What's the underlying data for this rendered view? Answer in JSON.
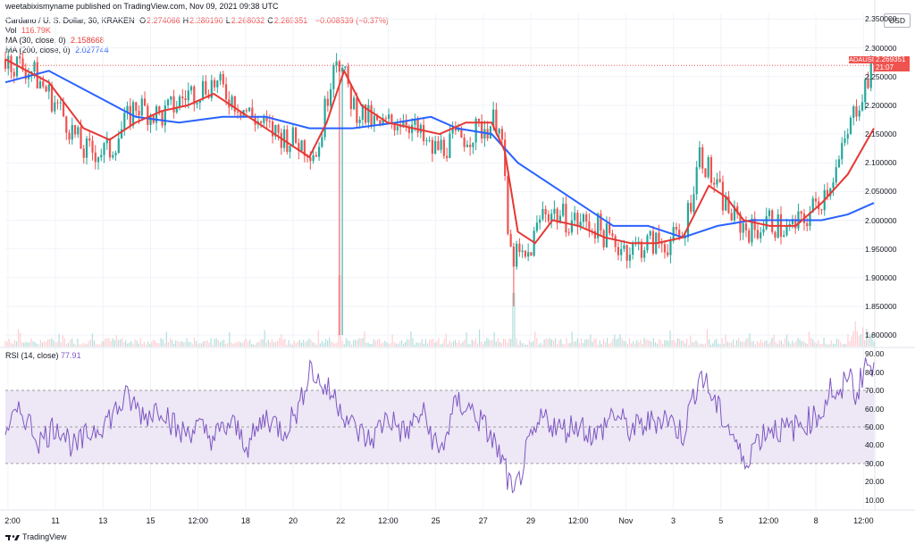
{
  "header": {
    "text": "weetabixismyname published on TradingView.com, Nov 09, 2021 09:38 UTC"
  },
  "legend": {
    "symbol": "Cardano / U. S. Dollar, 30, KRAKEN",
    "ohlc": [
      {
        "k": "O",
        "v": "2.274066"
      },
      {
        "k": "H",
        "v": "2.280190"
      },
      {
        "k": "L",
        "v": "2.268032"
      },
      {
        "k": "C",
        "v": "2.269351"
      }
    ],
    "change": "−0.008539 (−0.37%)",
    "vol_label": "Vol",
    "vol_value": "116.79K",
    "ma30_label": "MA (30, close, 0)",
    "ma30_value": "2.158668",
    "ma200_label": "MA (200, close, 0)",
    "ma200_value": "2.027744",
    "rsi_label": "RSI (14, close)",
    "rsi_value": "77.91"
  },
  "price_tag": {
    "symbol": "ADAUSD",
    "price": "2.269351",
    "countdown": "21:07"
  },
  "currency": "USD",
  "logo_text": "TradingView",
  "colors": {
    "up": "#26a69a",
    "down": "#ef5350",
    "ma30": "#e53935",
    "ma200": "#2962ff",
    "rsi": "#7e57c2",
    "rsi_band": "#ede7f6",
    "grid": "#f0f3fa"
  },
  "chart_data": [
    {
      "type": "candlestick",
      "title": "Cardano / U. S. Dollar, 30, KRAKEN",
      "x_tick_labels": [
        "2:00",
        "11",
        "13",
        "15",
        "12:00",
        "18",
        "20",
        "22",
        "12:00",
        "25",
        "27",
        "29",
        "12:00",
        "Nov",
        "3",
        "5",
        "12:00",
        "8",
        "12:00"
      ],
      "y_tick_labels": [
        "1.800000",
        "1.850000",
        "1.900000",
        "1.950000",
        "2.000000",
        "2.050000",
        "2.100000",
        "2.150000",
        "2.200000",
        "2.250000",
        "2.300000",
        "2.350000"
      ],
      "ylim": [
        1.78,
        2.36
      ],
      "close_path": [
        [
          0,
          2.28
        ],
        [
          0.03,
          2.26
        ],
        [
          0.06,
          2.2
        ],
        [
          0.09,
          2.12
        ],
        [
          0.12,
          2.12
        ],
        [
          0.15,
          2.2
        ],
        [
          0.18,
          2.18
        ],
        [
          0.21,
          2.22
        ],
        [
          0.24,
          2.24
        ],
        [
          0.27,
          2.2
        ],
        [
          0.3,
          2.16
        ],
        [
          0.33,
          2.14
        ],
        [
          0.36,
          2.12
        ],
        [
          0.38,
          2.3
        ],
        [
          0.4,
          2.2
        ],
        [
          0.43,
          2.16
        ],
        [
          0.46,
          2.18
        ],
        [
          0.49,
          2.12
        ],
        [
          0.52,
          2.14
        ],
        [
          0.55,
          2.16
        ],
        [
          0.57,
          2.18
        ],
        [
          0.58,
          1.94
        ],
        [
          0.6,
          1.93
        ],
        [
          0.62,
          2.02
        ],
        [
          0.65,
          2.0
        ],
        [
          0.68,
          1.99
        ],
        [
          0.7,
          1.96
        ],
        [
          0.72,
          1.95
        ],
        [
          0.74,
          1.96
        ],
        [
          0.76,
          1.96
        ],
        [
          0.78,
          1.97
        ],
        [
          0.8,
          2.12
        ],
        [
          0.82,
          2.05
        ],
        [
          0.84,
          2.0
        ],
        [
          0.86,
          1.98
        ],
        [
          0.88,
          2.0
        ],
        [
          0.9,
          1.98
        ],
        [
          0.92,
          2.0
        ],
        [
          0.94,
          2.04
        ],
        [
          0.96,
          2.1
        ],
        [
          0.98,
          2.2
        ],
        [
          1.0,
          2.27
        ]
      ],
      "ma30_path": [
        [
          0,
          2.28
        ],
        [
          0.05,
          2.24
        ],
        [
          0.09,
          2.16
        ],
        [
          0.12,
          2.14
        ],
        [
          0.15,
          2.17
        ],
        [
          0.18,
          2.19
        ],
        [
          0.21,
          2.2
        ],
        [
          0.24,
          2.22
        ],
        [
          0.27,
          2.19
        ],
        [
          0.31,
          2.15
        ],
        [
          0.35,
          2.11
        ],
        [
          0.37,
          2.17
        ],
        [
          0.39,
          2.26
        ],
        [
          0.41,
          2.2
        ],
        [
          0.44,
          2.17
        ],
        [
          0.47,
          2.16
        ],
        [
          0.5,
          2.15
        ],
        [
          0.53,
          2.17
        ],
        [
          0.56,
          2.17
        ],
        [
          0.575,
          2.12
        ],
        [
          0.59,
          1.98
        ],
        [
          0.61,
          1.96
        ],
        [
          0.63,
          2.0
        ],
        [
          0.66,
          1.99
        ],
        [
          0.69,
          1.97
        ],
        [
          0.72,
          1.96
        ],
        [
          0.75,
          1.96
        ],
        [
          0.78,
          1.97
        ],
        [
          0.81,
          2.06
        ],
        [
          0.83,
          2.04
        ],
        [
          0.85,
          2.0
        ],
        [
          0.88,
          1.99
        ],
        [
          0.91,
          1.99
        ],
        [
          0.94,
          2.03
        ],
        [
          0.97,
          2.08
        ],
        [
          1.0,
          2.16
        ]
      ],
      "ma200_path": [
        [
          0,
          2.24
        ],
        [
          0.05,
          2.26
        ],
        [
          0.1,
          2.22
        ],
        [
          0.15,
          2.18
        ],
        [
          0.2,
          2.17
        ],
        [
          0.25,
          2.18
        ],
        [
          0.3,
          2.18
        ],
        [
          0.35,
          2.16
        ],
        [
          0.4,
          2.16
        ],
        [
          0.45,
          2.17
        ],
        [
          0.49,
          2.18
        ],
        [
          0.52,
          2.16
        ],
        [
          0.56,
          2.15
        ],
        [
          0.59,
          2.1
        ],
        [
          0.63,
          2.06
        ],
        [
          0.67,
          2.02
        ],
        [
          0.7,
          1.99
        ],
        [
          0.74,
          1.99
        ],
        [
          0.78,
          1.97
        ],
        [
          0.82,
          1.99
        ],
        [
          0.86,
          2.0
        ],
        [
          0.9,
          2.0
        ],
        [
          0.94,
          2.0
        ],
        [
          0.97,
          2.01
        ],
        [
          1.0,
          2.03
        ]
      ],
      "last_price": 2.269351
    },
    {
      "type": "line",
      "title": "RSI (14, close)",
      "y_tick_labels": [
        "10.00",
        "20.00",
        "30.00",
        "40.00",
        "50.00",
        "60.00",
        "70.00",
        "80.00",
        "90.00"
      ],
      "ylim": [
        5,
        93
      ],
      "band": [
        30,
        70
      ],
      "midline": 50,
      "path": [
        [
          0,
          50
        ],
        [
          0.02,
          58
        ],
        [
          0.04,
          42
        ],
        [
          0.06,
          52
        ],
        [
          0.08,
          38
        ],
        [
          0.1,
          48
        ],
        [
          0.12,
          55
        ],
        [
          0.14,
          66
        ],
        [
          0.16,
          56
        ],
        [
          0.18,
          62
        ],
        [
          0.2,
          46
        ],
        [
          0.22,
          50
        ],
        [
          0.24,
          44
        ],
        [
          0.26,
          52
        ],
        [
          0.28,
          40
        ],
        [
          0.3,
          56
        ],
        [
          0.32,
          48
        ],
        [
          0.34,
          62
        ],
        [
          0.35,
          84
        ],
        [
          0.36,
          75
        ],
        [
          0.38,
          66
        ],
        [
          0.4,
          50
        ],
        [
          0.42,
          42
        ],
        [
          0.44,
          56
        ],
        [
          0.46,
          46
        ],
        [
          0.48,
          58
        ],
        [
          0.5,
          35
        ],
        [
          0.52,
          64
        ],
        [
          0.54,
          58
        ],
        [
          0.56,
          44
        ],
        [
          0.575,
          28
        ],
        [
          0.585,
          10
        ],
        [
          0.6,
          36
        ],
        [
          0.62,
          56
        ],
        [
          0.64,
          48
        ],
        [
          0.66,
          52
        ],
        [
          0.68,
          44
        ],
        [
          0.7,
          58
        ],
        [
          0.72,
          48
        ],
        [
          0.74,
          52
        ],
        [
          0.76,
          56
        ],
        [
          0.78,
          46
        ],
        [
          0.8,
          80
        ],
        [
          0.82,
          60
        ],
        [
          0.84,
          44
        ],
        [
          0.85,
          28
        ],
        [
          0.86,
          40
        ],
        [
          0.88,
          50
        ],
        [
          0.9,
          48
        ],
        [
          0.92,
          52
        ],
        [
          0.94,
          58
        ],
        [
          0.95,
          72
        ],
        [
          0.96,
          62
        ],
        [
          0.97,
          82
        ],
        [
          0.98,
          66
        ],
        [
          0.99,
          86
        ],
        [
          1.0,
          78
        ]
      ]
    }
  ]
}
